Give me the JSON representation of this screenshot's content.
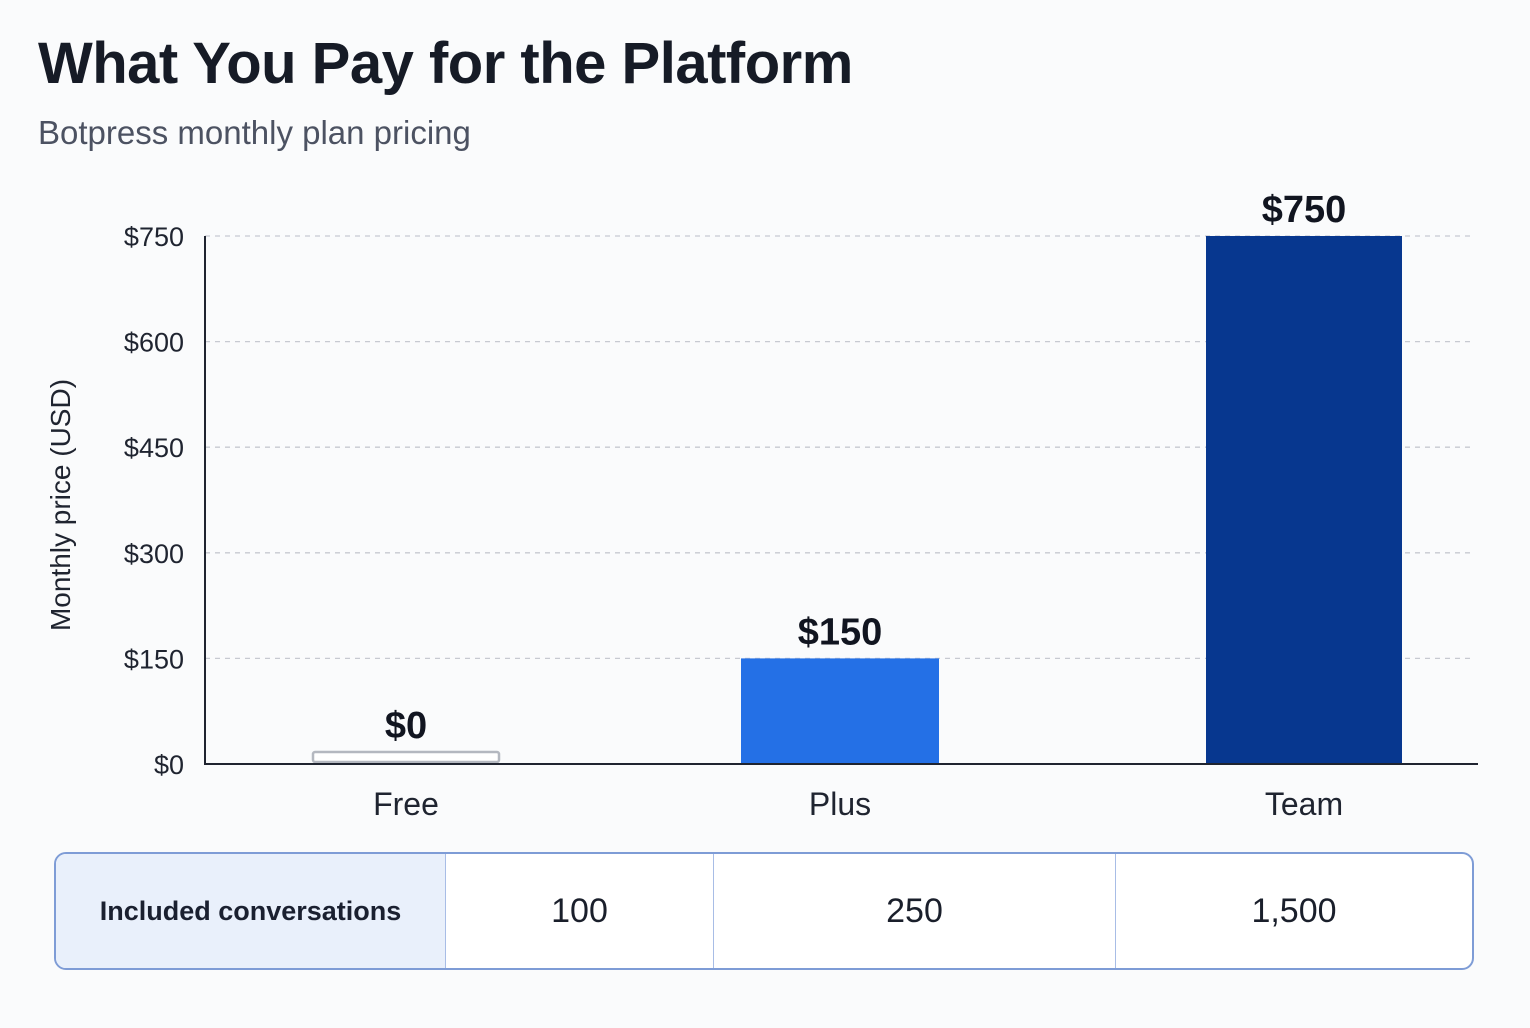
{
  "header": {
    "title": "What You Pay for the Platform",
    "subtitle": "Botpress monthly plan pricing"
  },
  "chart_data": {
    "type": "bar",
    "categories": [
      "Free",
      "Plus",
      "Team"
    ],
    "values": [
      0,
      150,
      750
    ],
    "value_labels": [
      "$0",
      "$150",
      "$750"
    ],
    "ylabel": "Monthly price (USD)",
    "xlabel": "",
    "ylim": [
      0,
      750
    ],
    "yticks": [
      0,
      150,
      300,
      450,
      600,
      750
    ],
    "ytick_labels": [
      "$0",
      "$150",
      "$300",
      "$450",
      "$600",
      "$750"
    ],
    "grid": true,
    "colors": [
      "#ffffff",
      "#2470e6",
      "#07378f"
    ],
    "outline_colors": [
      "#b4b8c0",
      "#2470e6",
      "#07378f"
    ]
  },
  "table": {
    "header": "Included conversations",
    "values": [
      "100",
      "250",
      "1,500"
    ]
  }
}
